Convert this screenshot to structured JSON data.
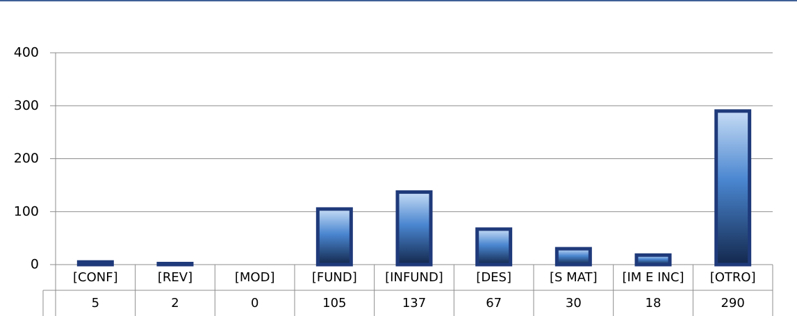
{
  "chart_data": {
    "type": "bar",
    "categories": [
      "[CONF]",
      "[REV]",
      "[MOD]",
      "[FUND]",
      "[INFUND]",
      "[DES]",
      "[S MAT]",
      "[IM E INC]",
      "[OTRO]"
    ],
    "values": [
      5,
      2,
      0,
      105,
      137,
      67,
      30,
      18,
      290
    ],
    "color": "#1f3a7a",
    "ylim": [
      0,
      400
    ],
    "yticks": [
      0,
      100,
      200,
      300,
      400
    ],
    "grid": true
  }
}
